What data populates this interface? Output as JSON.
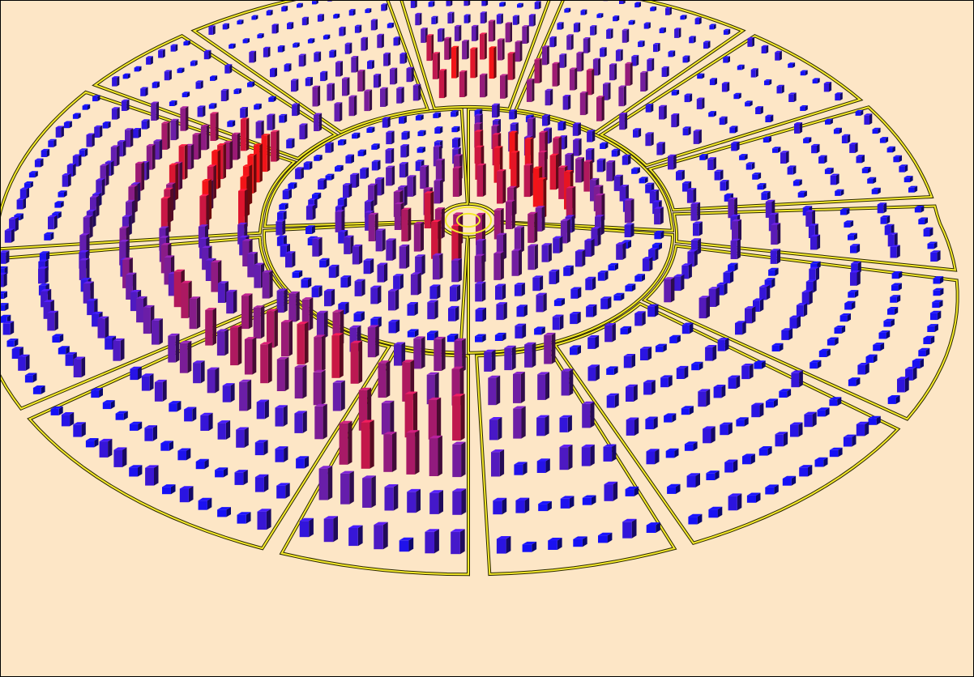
{
  "view": {
    "background": "#fde6c6",
    "frame_color": "#000000",
    "outline_color": "#f4ea2a",
    "low_color": "#1410f6",
    "mid_color": "#6a1ea8",
    "high_color": "#f21418"
  },
  "chart_data": {
    "type": "radial-3d-bar",
    "rings": [
      {
        "name": "inner",
        "sectors": [
          {
            "id": "i1",
            "span": [
              0,
              95
            ],
            "rows": 6,
            "intensity": [
              0.8,
              0.95,
              0.9,
              0.6,
              0.35,
              0.15
            ]
          },
          {
            "id": "i2",
            "span": [
              97,
              180
            ],
            "rows": 6,
            "intensity": [
              0.7,
              0.55,
              0.4,
              0.25,
              0.12,
              0.05
            ]
          },
          {
            "id": "i3",
            "span": [
              182,
              265
            ],
            "rows": 6,
            "intensity": [
              0.85,
              0.75,
              0.5,
              0.35,
              0.2,
              0.1
            ]
          },
          {
            "id": "i4",
            "span": [
              267,
              358
            ],
            "rows": 6,
            "intensity": [
              0.55,
              0.45,
              0.3,
              0.15,
              0.08,
              0.03
            ]
          }
        ]
      },
      {
        "name": "outer",
        "sectors": [
          {
            "id": "o1",
            "span": [
              -40,
              -12
            ],
            "rows": 7,
            "intensity": [
              0.55,
              0.45,
              0.3,
              0.2,
              0.1,
              0.05,
              0.02
            ]
          },
          {
            "id": "o2",
            "span": [
              -10,
              12
            ],
            "rows": 7,
            "intensity": [
              0.8,
              0.85,
              0.7,
              0.5,
              0.3,
              0.15,
              0.05
            ]
          },
          {
            "id": "o3",
            "span": [
              14,
              40
            ],
            "rows": 7,
            "intensity": [
              0.5,
              0.6,
              0.5,
              0.35,
              0.2,
              0.1,
              0.05
            ]
          },
          {
            "id": "o4",
            "span": [
              42,
              62
            ],
            "rows": 6,
            "intensity": [
              0.25,
              0.2,
              0.12,
              0.08,
              0.04,
              0.02
            ]
          },
          {
            "id": "o5",
            "span": [
              64,
              85
            ],
            "rows": 7,
            "intensity": [
              0.15,
              0.1,
              0.06,
              0.04,
              0.02,
              0.01,
              0.0
            ]
          },
          {
            "id": "o6",
            "span": [
              87,
              100
            ],
            "rows": 7,
            "intensity": [
              0.35,
              0.4,
              0.25,
              0.15,
              0.05,
              0.02,
              0.0
            ]
          },
          {
            "id": "o7",
            "span": [
              102,
              128
            ],
            "rows": 7,
            "intensity": [
              0.3,
              0.2,
              0.12,
              0.06,
              0.03,
              0.01,
              0.0
            ]
          },
          {
            "id": "o8",
            "span": [
              130,
              158
            ],
            "rows": 7,
            "intensity": [
              0.12,
              0.08,
              0.05,
              0.03,
              0.02,
              0.01,
              0.0
            ]
          },
          {
            "id": "o9",
            "span": [
              160,
              178
            ],
            "rows": 6,
            "intensity": [
              0.45,
              0.55,
              0.35,
              0.2,
              0.08,
              0.03
            ]
          },
          {
            "id": "o10",
            "span": [
              180,
              198
            ],
            "rows": 6,
            "intensity": [
              0.5,
              0.6,
              0.65,
              0.7,
              0.4,
              0.2
            ]
          },
          {
            "id": "o11",
            "span": [
              200,
              232
            ],
            "rows": 7,
            "intensity": [
              0.55,
              0.7,
              0.6,
              0.4,
              0.2,
              0.1,
              0.05
            ]
          },
          {
            "id": "o12",
            "span": [
              234,
              262
            ],
            "rows": 7,
            "intensity": [
              0.4,
              0.5,
              0.6,
              0.45,
              0.3,
              0.15,
              0.05
            ]
          },
          {
            "id": "o13",
            "span": [
              264,
              300
            ],
            "rows": 7,
            "intensity": [
              0.9,
              0.85,
              0.75,
              0.55,
              0.3,
              0.12,
              0.05
            ]
          },
          {
            "id": "o14",
            "span": [
              302,
              318
            ],
            "rows": 7,
            "intensity": [
              0.3,
              0.25,
              0.15,
              0.08,
              0.04,
              0.02,
              0.0
            ]
          }
        ]
      }
    ]
  }
}
